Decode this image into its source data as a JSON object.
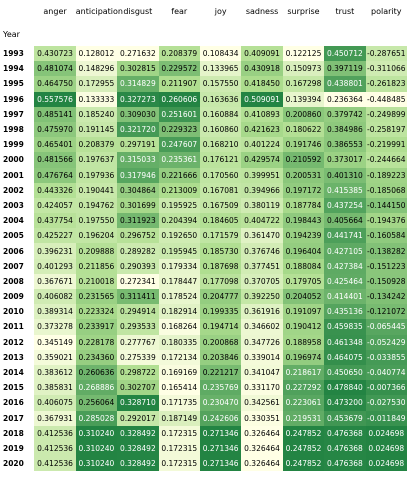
{
  "index_name": "Year",
  "columns": [
    "anger",
    "anticipation",
    "disgust",
    "fear",
    "joy",
    "sadness",
    "surprise",
    "trust",
    "polarity"
  ],
  "rows": [
    {
      "year": "1993",
      "values": [
        "0.430723",
        "0.128012",
        "0.271632",
        "0.208379",
        "0.108434",
        "0.409091",
        "0.122125",
        "0.450712",
        "-0.287651"
      ]
    },
    {
      "year": "1994",
      "values": [
        "0.481074",
        "0.148296",
        "0.302815",
        "0.229572",
        "0.133965",
        "0.430918",
        "0.150973",
        "0.397119",
        "-0.311066"
      ]
    },
    {
      "year": "1995",
      "values": [
        "0.464750",
        "0.172955",
        "0.314829",
        "0.211907",
        "0.157550",
        "0.418450",
        "0.167298",
        "0.438801",
        "-0.261823"
      ]
    },
    {
      "year": "1996",
      "values": [
        "0.557576",
        "0.133333",
        "0.327273",
        "0.260606",
        "0.163636",
        "0.509091",
        "0.139394",
        "0.236364",
        "-0.448485"
      ]
    },
    {
      "year": "1997",
      "values": [
        "0.485141",
        "0.185240",
        "0.309030",
        "0.251601",
        "0.160884",
        "0.410893",
        "0.200860",
        "0.379742",
        "-0.249899"
      ]
    },
    {
      "year": "1998",
      "values": [
        "0.475970",
        "0.191145",
        "0.321720",
        "0.229323",
        "0.160860",
        "0.421623",
        "0.180622",
        "0.384986",
        "-0.258197"
      ]
    },
    {
      "year": "1999",
      "values": [
        "0.465401",
        "0.208379",
        "0.297191",
        "0.247607",
        "0.168210",
        "0.401224",
        "0.191746",
        "0.386553",
        "-0.219991"
      ]
    },
    {
      "year": "2000",
      "values": [
        "0.481566",
        "0.197637",
        "0.315033",
        "0.235361",
        "0.176121",
        "0.429574",
        "0.210592",
        "0.373017",
        "-0.244664"
      ]
    },
    {
      "year": "2001",
      "values": [
        "0.476764",
        "0.197936",
        "0.317946",
        "0.221666",
        "0.170560",
        "0.399951",
        "0.200531",
        "0.401310",
        "-0.189223"
      ]
    },
    {
      "year": "2002",
      "values": [
        "0.443326",
        "0.190441",
        "0.304864",
        "0.213009",
        "0.167081",
        "0.394966",
        "0.197172",
        "0.415385",
        "-0.185068"
      ]
    },
    {
      "year": "2003",
      "values": [
        "0.424057",
        "0.194762",
        "0.301699",
        "0.195925",
        "0.167509",
        "0.380119",
        "0.187784",
        "0.437254",
        "-0.144150"
      ]
    },
    {
      "year": "2004",
      "values": [
        "0.437754",
        "0.197550",
        "0.311923",
        "0.204394",
        "0.184605",
        "0.404722",
        "0.198443",
        "0.405664",
        "-0.194376"
      ]
    },
    {
      "year": "2005",
      "values": [
        "0.425227",
        "0.196204",
        "0.296752",
        "0.192650",
        "0.171579",
        "0.361470",
        "0.194239",
        "0.441741",
        "-0.160584"
      ]
    },
    {
      "year": "2006",
      "values": [
        "0.396231",
        "0.209888",
        "0.289282",
        "0.195945",
        "0.185730",
        "0.376746",
        "0.196404",
        "0.427105",
        "-0.138282"
      ]
    },
    {
      "year": "2007",
      "values": [
        "0.401293",
        "0.211856",
        "0.290393",
        "0.179334",
        "0.187698",
        "0.377451",
        "0.188084",
        "0.427384",
        "-0.151223"
      ]
    },
    {
      "year": "2008",
      "values": [
        "0.367671",
        "0.210018",
        "0.272341",
        "0.178447",
        "0.177098",
        "0.370705",
        "0.179705",
        "0.425464",
        "-0.150928"
      ]
    },
    {
      "year": "2009",
      "values": [
        "0.406082",
        "0.231565",
        "0.311411",
        "0.178524",
        "0.204777",
        "0.392250",
        "0.204052",
        "0.414401",
        "-0.134242"
      ]
    },
    {
      "year": "2010",
      "values": [
        "0.389314",
        "0.223324",
        "0.294914",
        "0.182914",
        "0.199335",
        "0.361916",
        "0.191097",
        "0.435136",
        "-0.121072"
      ]
    },
    {
      "year": "2011",
      "values": [
        "0.373278",
        "0.233917",
        "0.293533",
        "0.168264",
        "0.194714",
        "0.346602",
        "0.190412",
        "0.459835",
        "-0.065445"
      ]
    },
    {
      "year": "2012",
      "values": [
        "0.345149",
        "0.228178",
        "0.277767",
        "0.180335",
        "0.200868",
        "0.347726",
        "0.188958",
        "0.461348",
        "-0.052429"
      ]
    },
    {
      "year": "2013",
      "values": [
        "0.359021",
        "0.234360",
        "0.275339",
        "0.172134",
        "0.203846",
        "0.339014",
        "0.196974",
        "0.464075",
        "-0.033855"
      ]
    },
    {
      "year": "2014",
      "values": [
        "0.383612",
        "0.260636",
        "0.298722",
        "0.169169",
        "0.221217",
        "0.341047",
        "0.218617",
        "0.450650",
        "-0.040774"
      ]
    },
    {
      "year": "2015",
      "values": [
        "0.385831",
        "0.268886",
        "0.302707",
        "0.165414",
        "0.235769",
        "0.331170",
        "0.227292",
        "0.478840",
        "-0.007366"
      ]
    },
    {
      "year": "2016",
      "values": [
        "0.406075",
        "0.256064",
        "0.328710",
        "0.171735",
        "0.230470",
        "0.342561",
        "0.223061",
        "0.473200",
        "-0.027530"
      ]
    },
    {
      "year": "2017",
      "values": [
        "0.367931",
        "0.285028",
        "0.292017",
        "0.187149",
        "0.242606",
        "0.330351",
        "0.219531",
        "0.453679",
        "-0.011849"
      ]
    },
    {
      "year": "2018",
      "values": [
        "0.412536",
        "0.310240",
        "0.328492",
        "0.172315",
        "0.271346",
        "0.326464",
        "0.247852",
        "0.476368",
        "0.024698"
      ]
    },
    {
      "year": "2019",
      "values": [
        "0.412536",
        "0.310240",
        "0.328492",
        "0.172315",
        "0.271346",
        "0.326464",
        "0.247852",
        "0.476368",
        "0.024698"
      ]
    },
    {
      "year": "2020",
      "values": [
        "0.412536",
        "0.310240",
        "0.328492",
        "0.172315",
        "0.271346",
        "0.326464",
        "0.247852",
        "0.476368",
        "0.024698"
      ]
    }
  ],
  "colors": {
    "scale_low": "#ffffe5",
    "scale_mid": "#addd8e",
    "scale_high": "#238443"
  }
}
